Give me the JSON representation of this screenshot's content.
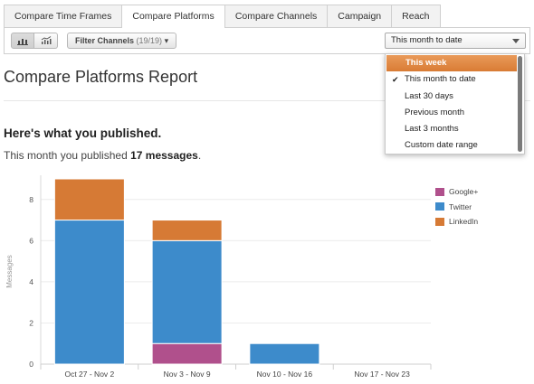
{
  "tabs": [
    {
      "label": "Compare Time Frames",
      "active": false
    },
    {
      "label": "Compare Platforms",
      "active": true
    },
    {
      "label": "Compare Channels",
      "active": false
    },
    {
      "label": "Campaign",
      "active": false
    },
    {
      "label": "Reach",
      "active": false
    }
  ],
  "toolbar": {
    "bar_view_icon": "bar-chart-icon",
    "line_view_icon": "line-chart-icon",
    "filter_label": "Filter Channels",
    "filter_count": "(19/19)",
    "filter_caret": "▾",
    "date_selected": "This month to date"
  },
  "date_menu": {
    "options": [
      {
        "label": "This week",
        "highlighted": true,
        "checked": false
      },
      {
        "label": "This month to date",
        "highlighted": false,
        "checked": true
      },
      {
        "label": "Last 30 days",
        "highlighted": false,
        "checked": false
      },
      {
        "label": "Previous month",
        "highlighted": false,
        "checked": false
      },
      {
        "label": "Last 3 months",
        "highlighted": false,
        "checked": false
      },
      {
        "label": "Custom date range",
        "highlighted": false,
        "checked": false
      }
    ],
    "check_glyph": "✔"
  },
  "report": {
    "title": "Compare Platforms Report",
    "published_heading": "Here's what you published.",
    "summary_prefix": "This month you published ",
    "summary_count": "17 messages",
    "summary_suffix": "."
  },
  "colors": {
    "google_plus": "#b0508c",
    "twitter": "#3d8bcb",
    "linkedin": "#d67a35",
    "menu_highlight": "#e08a45"
  },
  "chart_data": {
    "type": "bar",
    "stacked": true,
    "categories": [
      "Oct 27 - Nov 2",
      "Nov 3 - Nov 9",
      "Nov 10 - Nov 16",
      "Nov 17 - Nov 23"
    ],
    "series": [
      {
        "name": "Google+",
        "values": [
          0,
          1,
          0,
          0
        ]
      },
      {
        "name": "Twitter",
        "values": [
          7,
          5,
          1,
          0
        ]
      },
      {
        "name": "LinkedIn",
        "values": [
          2,
          1,
          0,
          0
        ]
      }
    ],
    "ylabel": "Messages",
    "xlabel": "",
    "ylim": [
      0,
      9
    ],
    "yticks": [
      0,
      2,
      4,
      6,
      8
    ],
    "legend_position": "right",
    "grid": true
  }
}
